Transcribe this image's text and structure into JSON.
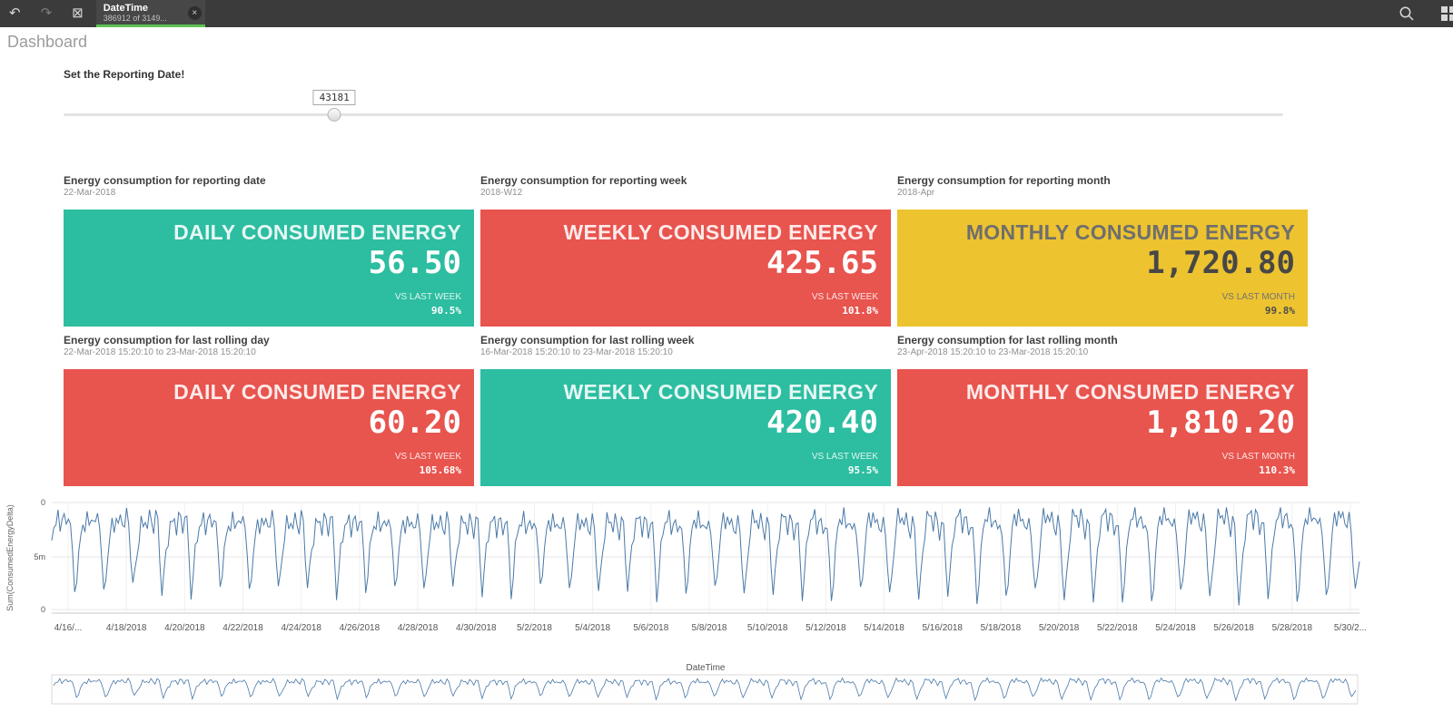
{
  "topbar": {
    "selection_tab": {
      "title": "DateTime",
      "subtitle": "386912 of 3149..."
    }
  },
  "icons": {
    "step_back": "↶",
    "step_forward": "↷",
    "clear_all": "⊠",
    "close": "×"
  },
  "page": {
    "title": "Dashboard"
  },
  "slider": {
    "label": "Set the Reporting Date!",
    "value": "43181",
    "position_pct": 22.2
  },
  "kpis": [
    {
      "section_title": "Energy consumption for reporting date",
      "section_subtitle": "22-Mar-2018",
      "title": "DAILY CONSUMED ENERGY",
      "value": "56.50",
      "compare_label": "VS LAST WEEK",
      "compare_value": "90.5%",
      "color": "#2dbda1",
      "scheme": "light"
    },
    {
      "section_title": "Energy consumption for reporting week",
      "section_subtitle": "2018-W12",
      "title": "WEEKLY CONSUMED ENERGY",
      "value": "425.65",
      "compare_label": "VS LAST WEEK",
      "compare_value": "101.8%",
      "color": "#e8544e",
      "scheme": "light"
    },
    {
      "section_title": "Energy consumption for reporting month",
      "section_subtitle": "2018-Apr",
      "title": "MONTHLY CONSUMED ENERGY",
      "value": "1,720.80",
      "compare_label": "VS LAST MONTH",
      "compare_value": "99.8%",
      "color": "#edc32f",
      "scheme": "dark"
    },
    {
      "section_title": "Energy consumption for last rolling day",
      "section_subtitle": "22-Mar-2018 15:20:10 to 23-Mar-2018 15:20:10",
      "title": "DAILY CONSUMED ENERGY",
      "value": "60.20",
      "compare_label": "VS LAST WEEK",
      "compare_value": "105.68%",
      "color": "#e8544e",
      "scheme": "light"
    },
    {
      "section_title": "Energy consumption for last rolling week",
      "section_subtitle": "16-Mar-2018 15:20:10 to 23-Mar-2018 15:20:10",
      "title": "WEEKLY CONSUMED ENERGY",
      "value": "420.40",
      "compare_label": "VS LAST WEEK",
      "compare_value": "95.5%",
      "color": "#2dbda1",
      "scheme": "light"
    },
    {
      "section_title": "Energy consumption for last rolling month",
      "section_subtitle": "23-Apr-2018 15:20:10 to 23-Mar-2018 15:20:10",
      "title": "MONTHLY CONSUMED ENERGY",
      "value": "1,810.20",
      "compare_label": "VS LAST MONTH",
      "compare_value": "110.3%",
      "color": "#e8544e",
      "scheme": "light"
    }
  ],
  "chart_data": {
    "type": "line",
    "title": "",
    "ylabel": "Sum(ConsumedEnergyDelta)",
    "xlabel": "DateTime",
    "y_ticks": [
      "0",
      "5m",
      "0"
    ],
    "x_ticks": [
      "4/16/...",
      "4/18/2018",
      "4/20/2018",
      "4/22/2018",
      "4/24/2018",
      "4/26/2018",
      "4/28/2018",
      "4/30/2018",
      "5/2/2018",
      "5/4/2018",
      "5/6/2018",
      "5/8/2018",
      "5/10/2018",
      "5/12/2018",
      "5/14/2018",
      "5/16/2018",
      "5/18/2018",
      "5/20/2018",
      "5/22/2018",
      "5/24/2018",
      "5/26/2018",
      "5/28/2018",
      "5/30/2..."
    ],
    "x_range": [
      "4/16/2018",
      "5/31/2018"
    ],
    "days": 45,
    "daily_pattern": [
      0.3,
      0.12,
      0.18,
      0.08,
      0.22,
      0.1,
      0.15,
      0.25,
      0.12,
      0.2,
      0.55,
      0.9,
      0.72,
      0.45
    ],
    "jitter": 0.06,
    "line_color": "#4a79a8",
    "grid": true,
    "legend": "none",
    "navigator": true
  }
}
